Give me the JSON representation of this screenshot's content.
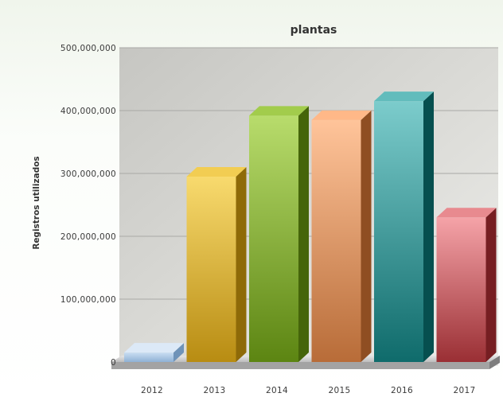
{
  "chart_data": {
    "type": "bar",
    "title": "plantas",
    "xlabel": "",
    "ylabel": "Registros utilizados",
    "categories": [
      "2012",
      "2013",
      "2014",
      "2015",
      "2016",
      "2017"
    ],
    "values": [
      15000000,
      295000000,
      392000000,
      385000000,
      415000000,
      230000000
    ],
    "ylim": [
      0,
      500000000
    ],
    "yticks": [
      0,
      100000000,
      200000000,
      300000000,
      400000000,
      500000000
    ],
    "ytick_labels": [
      "0",
      "100,000,000",
      "200,000,000",
      "300,000,000",
      "400,000,000",
      "500,000,000"
    ],
    "grid": true,
    "legend": "none",
    "colors": [
      {
        "light": "#c9ddf2",
        "dark": "#8fb1d4",
        "top": "#dce9f7",
        "side": "#6f93b8"
      },
      {
        "light": "#f8da6e",
        "dark": "#b88c12",
        "top": "#f2cd52",
        "side": "#8e6a08"
      },
      {
        "light": "#b8dc6c",
        "dark": "#5c8512",
        "top": "#a2cc4c",
        "side": "#45650a"
      },
      {
        "light": "#ffc49a",
        "dark": "#b86c38",
        "top": "#ffb888",
        "side": "#8f4e22"
      },
      {
        "light": "#7ccccc",
        "dark": "#0f6b6b",
        "top": "#62bcbc",
        "side": "#064f4f"
      },
      {
        "light": "#f5a3a8",
        "dark": "#9a2f34",
        "top": "#e88a8f",
        "side": "#761e22"
      }
    ]
  }
}
